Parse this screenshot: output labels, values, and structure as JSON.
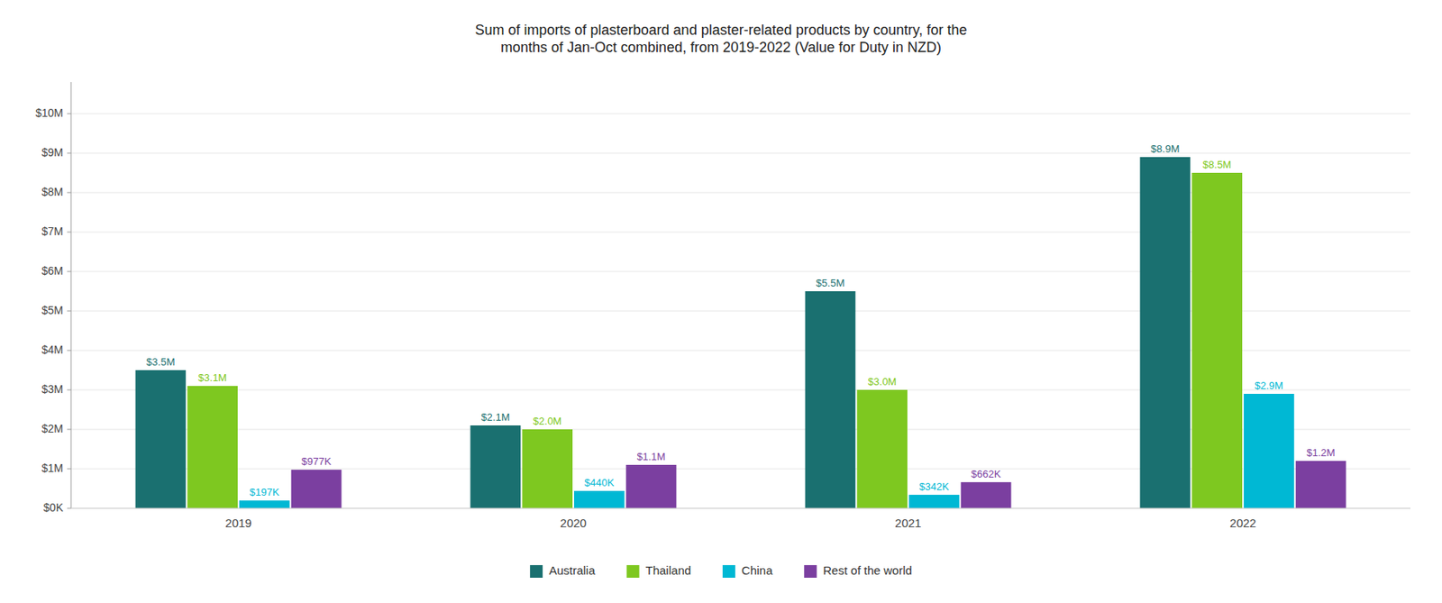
{
  "chart_data": {
    "type": "bar",
    "title": "Sum of imports of plasterboard and plaster-related products by country, for the\nmonths of Jan-Oct combined, from 2019-2022 (Value for Duty in NZD)",
    "categories": [
      "2019",
      "2020",
      "2021",
      "2022"
    ],
    "series": [
      {
        "name": "Australia",
        "color": "#1a7070",
        "values": [
          3500000,
          2100000,
          5500000,
          8900000
        ],
        "value_labels": [
          "$3.5M",
          "$2.1M",
          "$5.5M",
          "$8.9M"
        ]
      },
      {
        "name": "Thailand",
        "color": "#7ec820",
        "values": [
          3100000,
          2000000,
          3000000,
          8500000
        ],
        "value_labels": [
          "$3.1M",
          "$2.0M",
          "$3.0M",
          "$8.5M"
        ]
      },
      {
        "name": "China",
        "color": "#00b8d4",
        "values": [
          197000,
          440000,
          342000,
          2900000
        ],
        "value_labels": [
          "$197K",
          "$440K",
          "$342K",
          "$2.9M"
        ]
      },
      {
        "name": "Rest of the world",
        "color": "#7b3fa0",
        "values": [
          977000,
          1100000,
          662000,
          1200000
        ],
        "value_labels": [
          "$977K",
          "$1.1M",
          "$662K",
          "$1.2M"
        ]
      }
    ],
    "ylim": [
      0,
      10800000
    ],
    "yticks": [
      {
        "value": 0,
        "label": "$0K"
      },
      {
        "value": 1000000,
        "label": "$1M"
      },
      {
        "value": 2000000,
        "label": "$2M"
      },
      {
        "value": 3000000,
        "label": "$3M"
      },
      {
        "value": 4000000,
        "label": "$4M"
      },
      {
        "value": 5000000,
        "label": "$5M"
      },
      {
        "value": 6000000,
        "label": "$6M"
      },
      {
        "value": 7000000,
        "label": "$7M"
      },
      {
        "value": 8000000,
        "label": "$8M"
      },
      {
        "value": 9000000,
        "label": "$9M"
      },
      {
        "value": 10000000,
        "label": "$10M"
      }
    ],
    "grid": true,
    "legend": "bottom",
    "data_labels": true
  }
}
